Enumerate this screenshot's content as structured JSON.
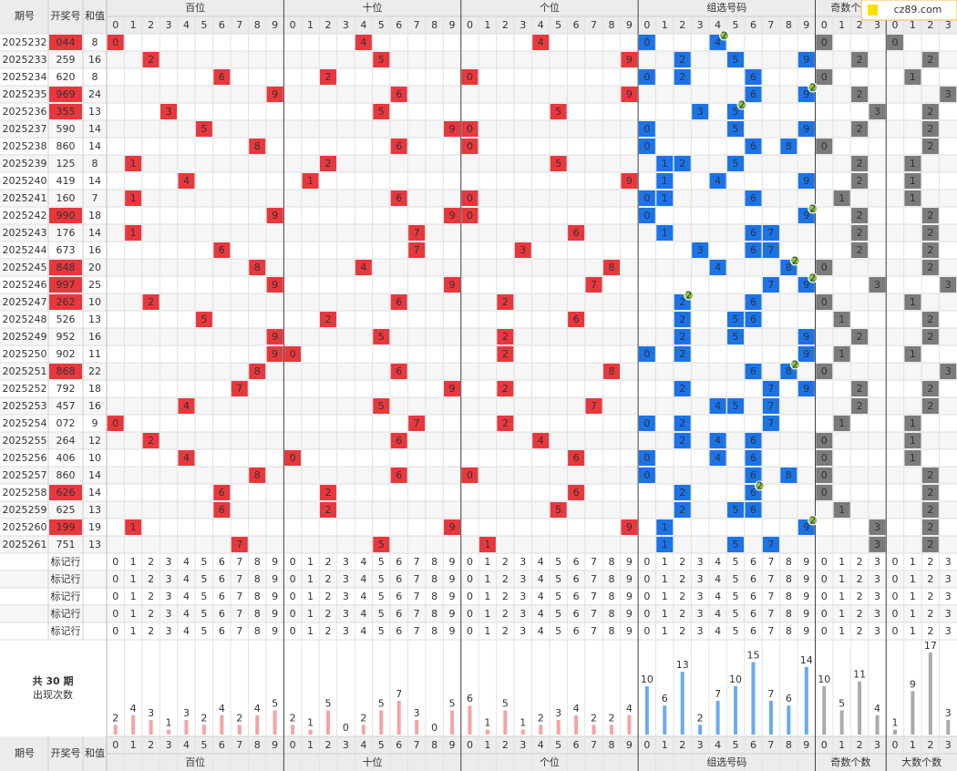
{
  "logo": "cz89.com",
  "headers": {
    "issue": "期号",
    "number": "开奖号",
    "sum": "和值"
  },
  "groups": [
    {
      "name": "百位",
      "digits": [
        0,
        1,
        2,
        3,
        4,
        5,
        6,
        7,
        8,
        9
      ]
    },
    {
      "name": "十位",
      "digits": [
        0,
        1,
        2,
        3,
        4,
        5,
        6,
        7,
        8,
        9
      ]
    },
    {
      "name": "个位",
      "digits": [
        0,
        1,
        2,
        3,
        4,
        5,
        6,
        7,
        8,
        9
      ]
    },
    {
      "name": "组选号码",
      "digits": [
        0,
        1,
        2,
        3,
        4,
        5,
        6,
        7,
        8,
        9
      ]
    },
    {
      "name": "奇数个数",
      "digits": [
        0,
        1,
        2,
        3
      ]
    },
    {
      "name": "大数个数",
      "digits": [
        0,
        1,
        2,
        3
      ]
    }
  ],
  "rows": [
    {
      "issue": "2025232",
      "number": "044",
      "sum": 8,
      "bai": 0,
      "shi": 4,
      "ge": 4,
      "odd": 0,
      "big": 0,
      "dup": 2
    },
    {
      "issue": "2025233",
      "number": "259",
      "sum": 16,
      "bai": 2,
      "shi": 5,
      "ge": 9,
      "odd": 2,
      "big": 2
    },
    {
      "issue": "2025234",
      "number": "620",
      "sum": 8,
      "bai": 6,
      "shi": 2,
      "ge": 0,
      "odd": 0,
      "big": 1
    },
    {
      "issue": "2025235",
      "number": "969",
      "sum": 24,
      "bai": 9,
      "shi": 6,
      "ge": 9,
      "odd": 2,
      "big": 3,
      "dup": 2
    },
    {
      "issue": "2025236",
      "number": "355",
      "sum": 13,
      "bai": 3,
      "shi": 5,
      "ge": 5,
      "odd": 3,
      "big": 2,
      "dup": 2
    },
    {
      "issue": "2025237",
      "number": "590",
      "sum": 14,
      "bai": 5,
      "shi": 9,
      "ge": 0,
      "odd": 2,
      "big": 2
    },
    {
      "issue": "2025238",
      "number": "860",
      "sum": 14,
      "bai": 8,
      "shi": 6,
      "ge": 0,
      "odd": 0,
      "big": 2
    },
    {
      "issue": "2025239",
      "number": "125",
      "sum": 8,
      "bai": 1,
      "shi": 2,
      "ge": 5,
      "odd": 2,
      "big": 1
    },
    {
      "issue": "2025240",
      "number": "419",
      "sum": 14,
      "bai": 4,
      "shi": 1,
      "ge": 9,
      "odd": 2,
      "big": 1
    },
    {
      "issue": "2025241",
      "number": "160",
      "sum": 7,
      "bai": 1,
      "shi": 6,
      "ge": 0,
      "odd": 1,
      "big": 1
    },
    {
      "issue": "2025242",
      "number": "990",
      "sum": 18,
      "bai": 9,
      "shi": 9,
      "ge": 0,
      "odd": 2,
      "big": 2,
      "dup": 2
    },
    {
      "issue": "2025243",
      "number": "176",
      "sum": 14,
      "bai": 1,
      "shi": 7,
      "ge": 6,
      "odd": 2,
      "big": 2
    },
    {
      "issue": "2025244",
      "number": "673",
      "sum": 16,
      "bai": 6,
      "shi": 7,
      "ge": 3,
      "odd": 2,
      "big": 2
    },
    {
      "issue": "2025245",
      "number": "848",
      "sum": 20,
      "bai": 8,
      "shi": 4,
      "ge": 8,
      "odd": 0,
      "big": 2,
      "dup": 2
    },
    {
      "issue": "2025246",
      "number": "997",
      "sum": 25,
      "bai": 9,
      "shi": 9,
      "ge": 7,
      "odd": 3,
      "big": 3,
      "dup": 2
    },
    {
      "issue": "2025247",
      "number": "262",
      "sum": 10,
      "bai": 2,
      "shi": 6,
      "ge": 2,
      "odd": 0,
      "big": 1,
      "dup": 2
    },
    {
      "issue": "2025248",
      "number": "526",
      "sum": 13,
      "bai": 5,
      "shi": 2,
      "ge": 6,
      "odd": 1,
      "big": 2
    },
    {
      "issue": "2025249",
      "number": "952",
      "sum": 16,
      "bai": 9,
      "shi": 5,
      "ge": 2,
      "odd": 2,
      "big": 2
    },
    {
      "issue": "2025250",
      "number": "902",
      "sum": 11,
      "bai": 9,
      "shi": 0,
      "ge": 2,
      "odd": 1,
      "big": 1
    },
    {
      "issue": "2025251",
      "number": "868",
      "sum": 22,
      "bai": 8,
      "shi": 6,
      "ge": 8,
      "odd": 0,
      "big": 3,
      "dup": 2
    },
    {
      "issue": "2025252",
      "number": "792",
      "sum": 18,
      "bai": 7,
      "shi": 9,
      "ge": 2,
      "odd": 2,
      "big": 2
    },
    {
      "issue": "2025253",
      "number": "457",
      "sum": 16,
      "bai": 4,
      "shi": 5,
      "ge": 7,
      "odd": 2,
      "big": 2
    },
    {
      "issue": "2025254",
      "number": "072",
      "sum": 9,
      "bai": 0,
      "shi": 7,
      "ge": 2,
      "odd": 1,
      "big": 1
    },
    {
      "issue": "2025255",
      "number": "264",
      "sum": 12,
      "bai": 2,
      "shi": 6,
      "ge": 4,
      "odd": 0,
      "big": 1
    },
    {
      "issue": "2025256",
      "number": "406",
      "sum": 10,
      "bai": 4,
      "shi": 0,
      "ge": 6,
      "odd": 0,
      "big": 1
    },
    {
      "issue": "2025257",
      "number": "860",
      "sum": 14,
      "bai": 8,
      "shi": 6,
      "ge": 0,
      "odd": 0,
      "big": 2
    },
    {
      "issue": "2025258",
      "number": "626",
      "sum": 14,
      "bai": 6,
      "shi": 2,
      "ge": 6,
      "odd": 0,
      "big": 2,
      "dup": 2
    },
    {
      "issue": "2025259",
      "number": "625",
      "sum": 13,
      "bai": 6,
      "shi": 2,
      "ge": 5,
      "odd": 1,
      "big": 2
    },
    {
      "issue": "2025260",
      "number": "199",
      "sum": 19,
      "bai": 1,
      "shi": 9,
      "ge": 9,
      "odd": 3,
      "big": 2,
      "dup": 2
    },
    {
      "issue": "2025261",
      "number": "751",
      "sum": 13,
      "bai": 7,
      "shi": 5,
      "ge": 1,
      "odd": 3,
      "big": 2
    }
  ],
  "marker_rows": [
    "标记行",
    "标记行",
    "标记行",
    "标记行",
    "标记行"
  ],
  "stats": {
    "period": "共 30 期",
    "label": "出现次数",
    "counts": [
      [
        2,
        4,
        3,
        1,
        3,
        2,
        4,
        2,
        4,
        5
      ],
      [
        2,
        1,
        5,
        0,
        2,
        5,
        7,
        3,
        0,
        5
      ],
      [
        6,
        1,
        5,
        1,
        2,
        3,
        4,
        2,
        2,
        4
      ],
      [
        10,
        6,
        13,
        2,
        7,
        10,
        15,
        7,
        6,
        14
      ],
      [
        10,
        5,
        11,
        4
      ],
      [
        1,
        9,
        17,
        3
      ]
    ]
  }
}
